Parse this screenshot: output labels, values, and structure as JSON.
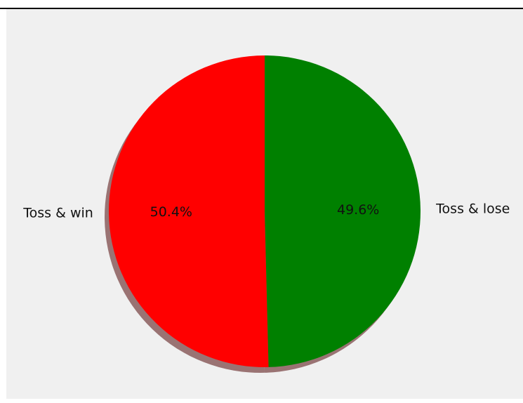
{
  "chart_data": {
    "type": "pie",
    "title": "",
    "categories": [
      "Toss & win",
      "Toss & lose"
    ],
    "values": [
      50.4,
      49.6
    ],
    "value_labels": [
      "50.4%",
      "49.6%"
    ],
    "colors": [
      "#ff0000",
      "#008000"
    ],
    "shadow": true,
    "start_angle": "top",
    "direction": "counterclockwise",
    "legend": "none"
  }
}
